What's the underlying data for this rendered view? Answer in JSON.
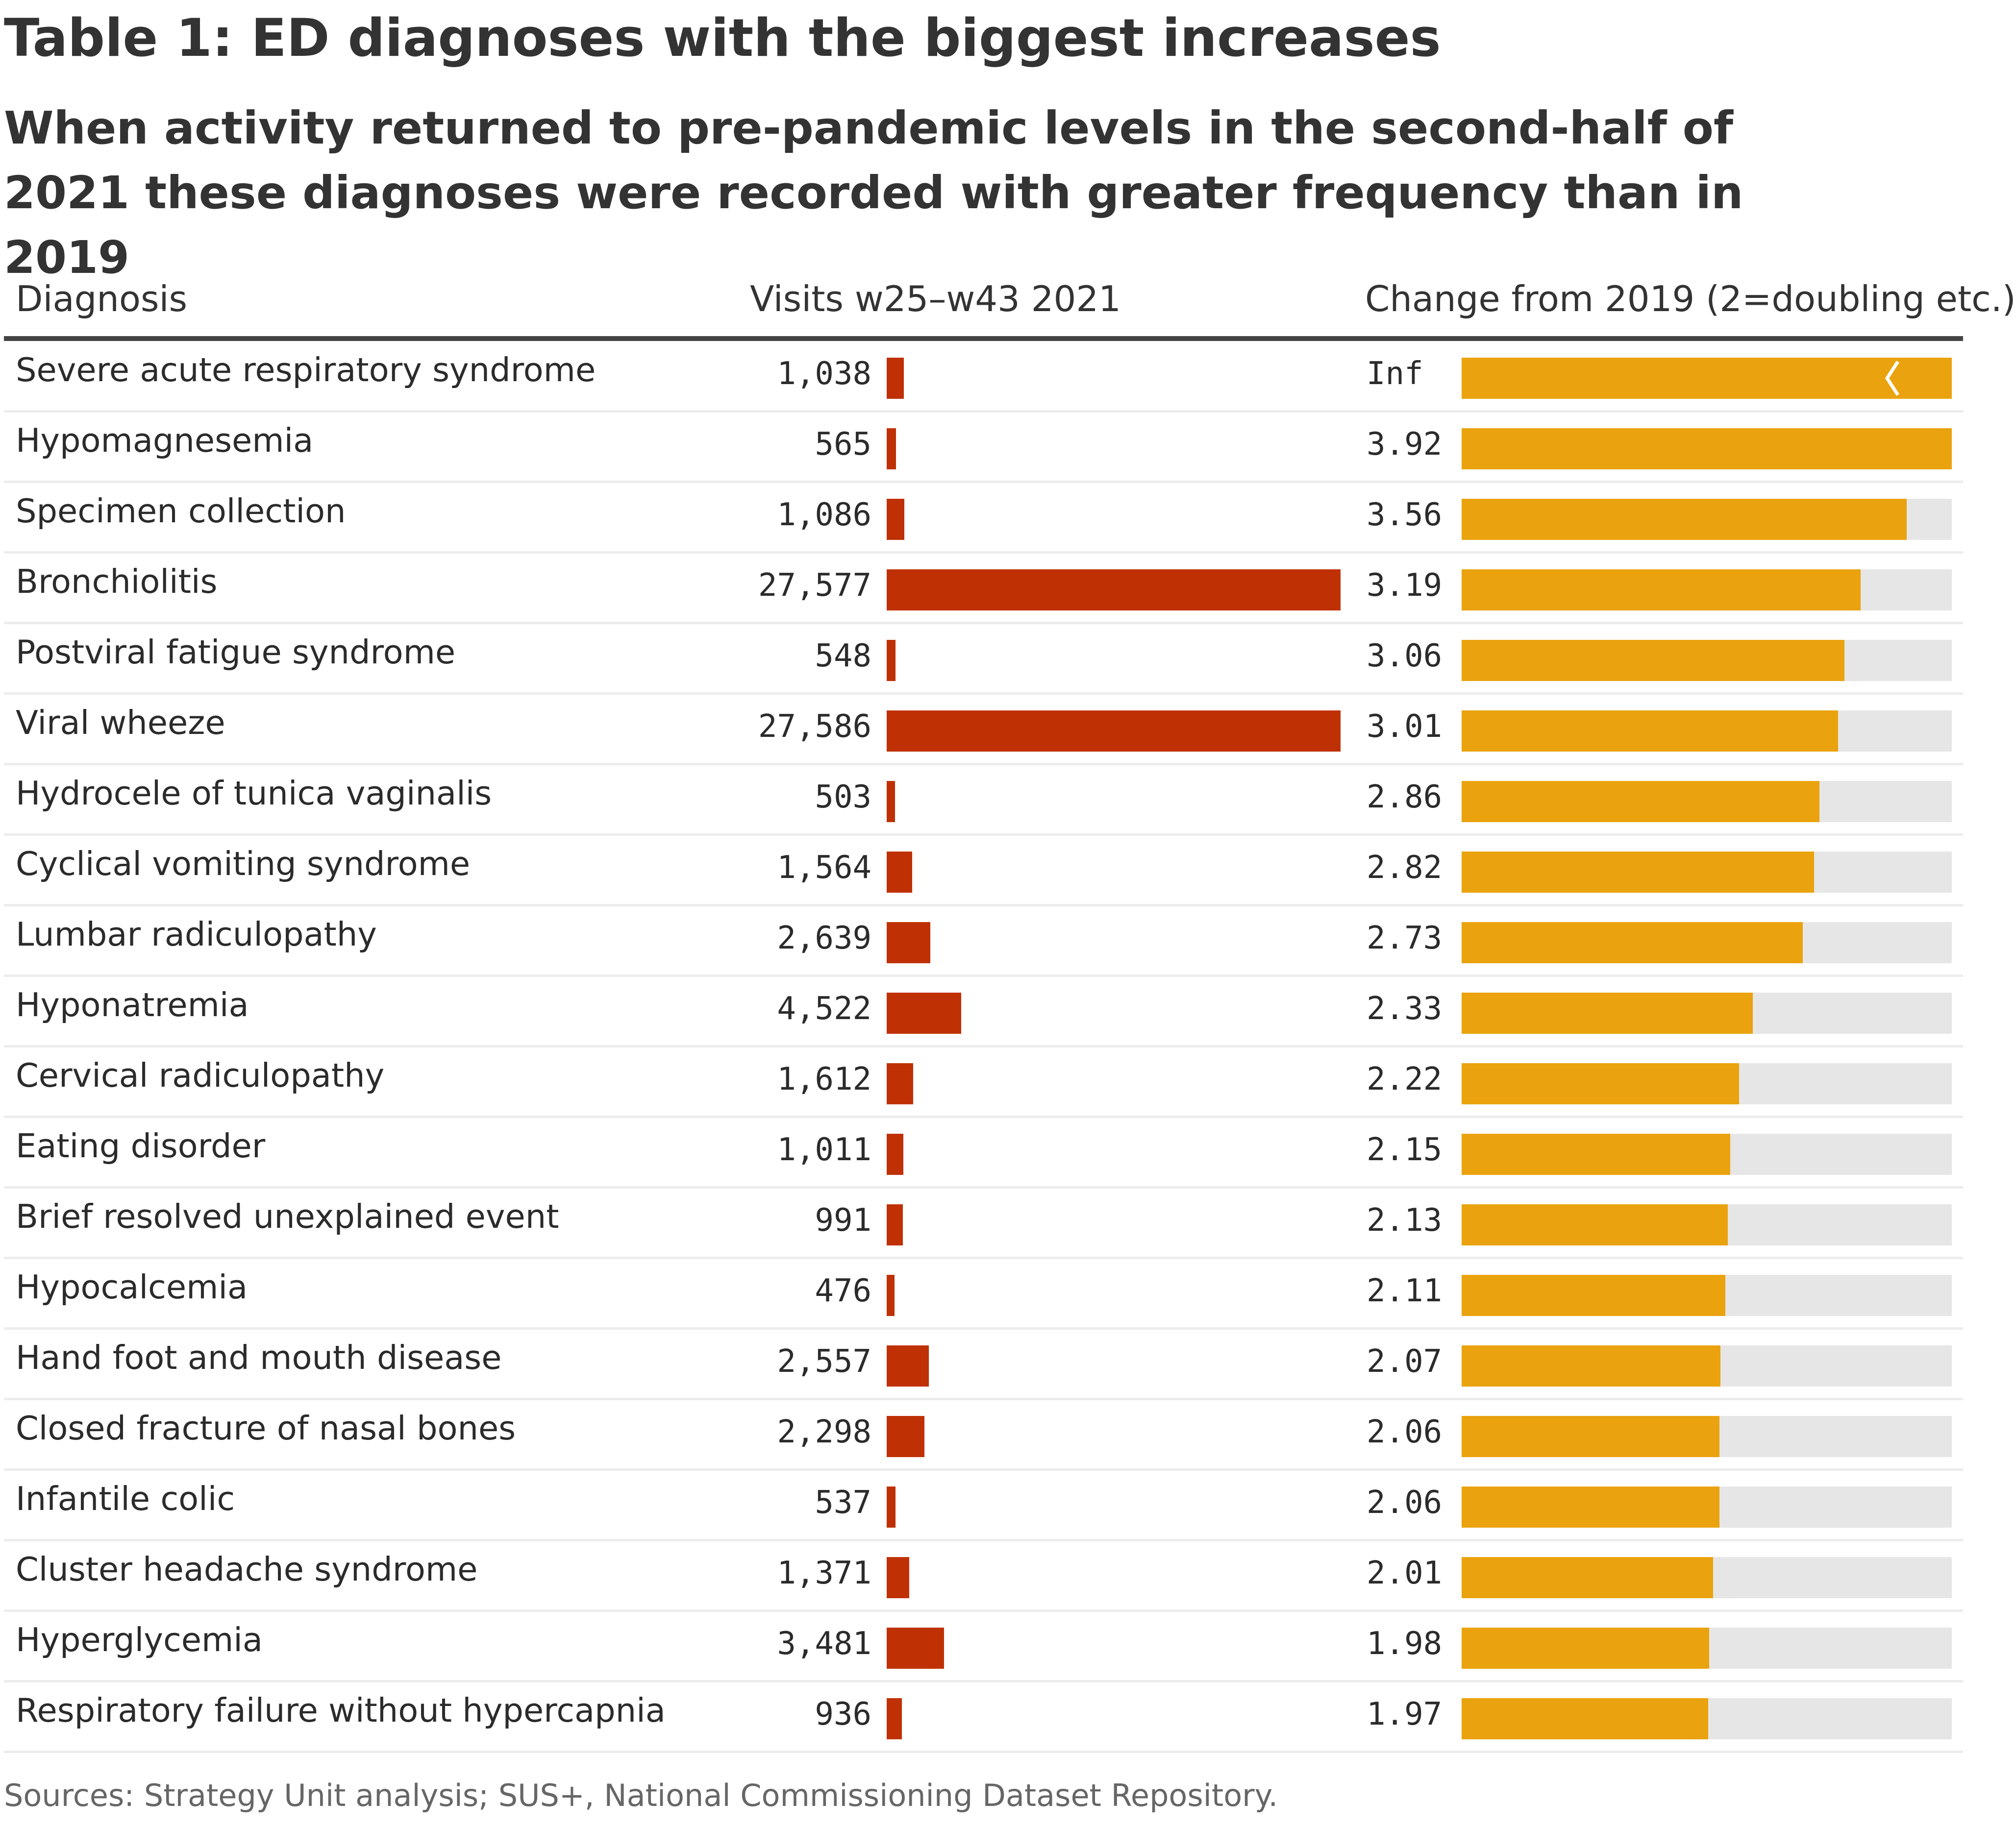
{
  "title": "Table 1: ED diagnoses with the biggest increases",
  "subtitle": "When activity returned to pre-pandemic levels in the second-half of 2021 these diagnoses were recorded with greater frequency than in 2019",
  "source": "Sources: Strategy Unit analysis; SUS+, National Commissioning Dataset Repository.",
  "colors": {
    "visits_bar": "#bf3105",
    "change_bar": "#eaa30e",
    "change_track": "#e6e6e6"
  },
  "chart_data": {
    "type": "table",
    "title": "Table 1: ED diagnoses with the biggest increases",
    "subtitle": "When activity returned to pre-pandemic levels in the second-half of 2021 these diagnoses were recorded with greater frequency than in 2019",
    "columns": [
      "Diagnosis",
      "Visits w25–w43 2021",
      "Change from 2019 (2=doubling etc.)"
    ],
    "visits_max": 27586,
    "change_max": 3.92,
    "rows": [
      {
        "diagnosis": "Severe acute respiratory syndrome",
        "visits": 1038,
        "visits_label": "1,038",
        "change": null,
        "change_label": "Inf"
      },
      {
        "diagnosis": "Hypomagnesemia",
        "visits": 565,
        "visits_label": "565",
        "change": 3.92,
        "change_label": "3.92"
      },
      {
        "diagnosis": "Specimen collection",
        "visits": 1086,
        "visits_label": "1,086",
        "change": 3.56,
        "change_label": "3.56"
      },
      {
        "diagnosis": "Bronchiolitis",
        "visits": 27577,
        "visits_label": "27,577",
        "change": 3.19,
        "change_label": "3.19"
      },
      {
        "diagnosis": "Postviral fatigue syndrome",
        "visits": 548,
        "visits_label": "548",
        "change": 3.06,
        "change_label": "3.06"
      },
      {
        "diagnosis": "Viral wheeze",
        "visits": 27586,
        "visits_label": "27,586",
        "change": 3.01,
        "change_label": "3.01"
      },
      {
        "diagnosis": "Hydrocele of tunica vaginalis",
        "visits": 503,
        "visits_label": "503",
        "change": 2.86,
        "change_label": "2.86"
      },
      {
        "diagnosis": "Cyclical vomiting syndrome",
        "visits": 1564,
        "visits_label": "1,564",
        "change": 2.82,
        "change_label": "2.82"
      },
      {
        "diagnosis": "Lumbar radiculopathy",
        "visits": 2639,
        "visits_label": "2,639",
        "change": 2.73,
        "change_label": "2.73"
      },
      {
        "diagnosis": "Hyponatremia",
        "visits": 4522,
        "visits_label": "4,522",
        "change": 2.33,
        "change_label": "2.33"
      },
      {
        "diagnosis": "Cervical radiculopathy",
        "visits": 1612,
        "visits_label": "1,612",
        "change": 2.22,
        "change_label": "2.22"
      },
      {
        "diagnosis": "Eating disorder",
        "visits": 1011,
        "visits_label": "1,011",
        "change": 2.15,
        "change_label": "2.15"
      },
      {
        "diagnosis": "Brief resolved unexplained event",
        "visits": 991,
        "visits_label": "991",
        "change": 2.13,
        "change_label": "2.13"
      },
      {
        "diagnosis": "Hypocalcemia",
        "visits": 476,
        "visits_label": "476",
        "change": 2.11,
        "change_label": "2.11"
      },
      {
        "diagnosis": "Hand foot and mouth disease",
        "visits": 2557,
        "visits_label": "2,557",
        "change": 2.07,
        "change_label": "2.07"
      },
      {
        "diagnosis": "Closed fracture of nasal bones",
        "visits": 2298,
        "visits_label": "2,298",
        "change": 2.06,
        "change_label": "2.06"
      },
      {
        "diagnosis": "Infantile colic",
        "visits": 537,
        "visits_label": "537",
        "change": 2.06,
        "change_label": "2.06"
      },
      {
        "diagnosis": "Cluster headache syndrome",
        "visits": 1371,
        "visits_label": "1,371",
        "change": 2.01,
        "change_label": "2.01"
      },
      {
        "diagnosis": "Hyperglycemia",
        "visits": 3481,
        "visits_label": "3,481",
        "change": 1.98,
        "change_label": "1.98"
      },
      {
        "diagnosis": "Respiratory failure without hypercapnia",
        "visits": 936,
        "visits_label": "936",
        "change": 1.97,
        "change_label": "1.97"
      }
    ]
  }
}
